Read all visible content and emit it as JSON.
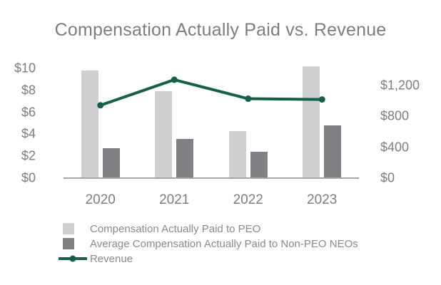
{
  "chart_data": {
    "type": "bar+line combo",
    "title": "Compensation Actually Paid vs. Revenue",
    "categories": [
      "2020",
      "2021",
      "2022",
      "2023"
    ],
    "series": [
      {
        "name": "Compensation Actually Paid to PEO",
        "type": "bar",
        "axis": "left",
        "color": "#cdcfd1",
        "values": [
          9.8,
          7.9,
          4.3,
          10.2
        ]
      },
      {
        "name": "Average Compensation Actually Paid to Non-PEO NEOs",
        "type": "bar",
        "axis": "left",
        "color": "#7f8184",
        "values": [
          2.7,
          3.6,
          2.4,
          4.8
        ]
      },
      {
        "name": "Revenue",
        "type": "line",
        "axis": "right",
        "color": "#145e4c",
        "values": [
          940,
          1270,
          1025,
          1015
        ]
      }
    ],
    "left_axis": {
      "ticks": [
        "$0",
        "$2",
        "$4",
        "$6",
        "$8",
        "$10"
      ],
      "tick_values": [
        0,
        2,
        4,
        6,
        8,
        10
      ],
      "min": 0,
      "max": 10
    },
    "right_axis": {
      "ticks": [
        "$0",
        "$400",
        "$800",
        "$1,200"
      ],
      "tick_values": [
        0,
        400,
        800,
        1200
      ],
      "min": 0,
      "max": 1400
    },
    "grid": false,
    "legend_position": "bottom-left",
    "colors": {
      "axis_line": "#a6a6a6",
      "text_gray": "#7d7d7d",
      "legend_text_gray": "#8a8a8a"
    }
  }
}
